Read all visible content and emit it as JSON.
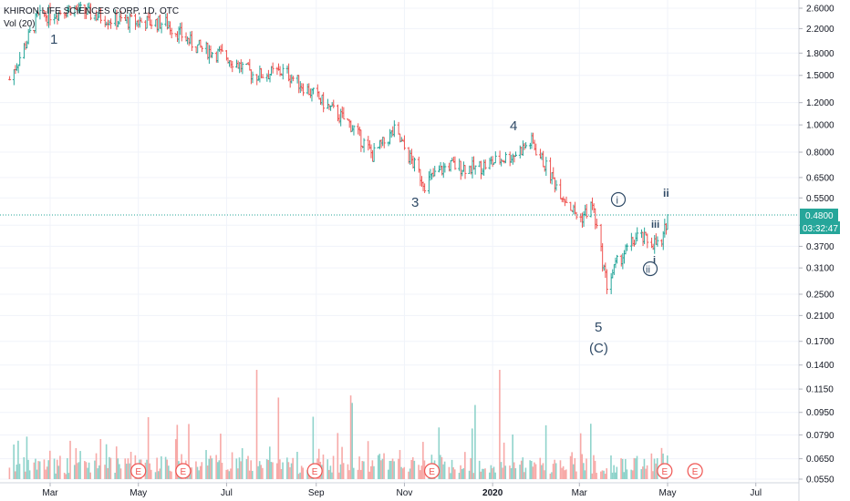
{
  "header": {
    "symbol_title": "KHIRON LIFE SCIENCES CORP, 1D, OTC",
    "vol_label": "Vol (20)"
  },
  "price_tag": {
    "last_price": "0.4800",
    "countdown": "03:32:47"
  },
  "colors": {
    "up": "#26a69a",
    "down": "#ef5350",
    "vol_up": "#8fd3cb",
    "vol_down": "#f7a9a7",
    "wave_label": "#2f4a66",
    "price_line": "#26a69a",
    "grid": "#f0f3fa"
  },
  "wave_labels": [
    "1",
    "3",
    "4",
    "5",
    "(C)",
    "i",
    "ii",
    "iii",
    "i",
    "ii"
  ],
  "earnings_marker": "E",
  "chart_data": {
    "type": "candlestick",
    "title": "KHIRON LIFE SCIENCES CORP, 1D, OTC",
    "y_scale": "log",
    "y_ticks": [
      "2.6000",
      "2.2000",
      "1.8000",
      "1.5000",
      "1.2000",
      "1.0000",
      "0.8000",
      "0.6500",
      "0.5500",
      "0.4400",
      "0.3700",
      "0.3100",
      "0.2500",
      "0.2100",
      "0.1700",
      "0.1400",
      "0.1150",
      "0.0950",
      "0.0790",
      "0.0650",
      "0.0550"
    ],
    "x_ticks": [
      "Mar",
      "May",
      "Jul",
      "Sep",
      "Nov",
      "2020",
      "Mar",
      "May",
      "Jul"
    ],
    "last_price": 0.48,
    "approx_close_path": [
      {
        "date": "2019-02-01",
        "close": 1.45
      },
      {
        "date": "2019-02-20",
        "close": 2.4
      },
      {
        "date": "2019-03-15",
        "close": 2.6
      },
      {
        "date": "2019-04-15",
        "close": 2.35
      },
      {
        "date": "2019-05-20",
        "close": 2.3
      },
      {
        "date": "2019-06-10",
        "close": 1.9
      },
      {
        "date": "2019-07-01",
        "close": 1.75
      },
      {
        "date": "2019-07-20",
        "close": 1.5
      },
      {
        "date": "2019-08-10",
        "close": 1.55
      },
      {
        "date": "2019-08-25",
        "close": 1.35
      },
      {
        "date": "2019-09-10",
        "close": 1.15
      },
      {
        "date": "2019-09-25",
        "close": 1.0
      },
      {
        "date": "2019-10-10",
        "close": 0.78
      },
      {
        "date": "2019-10-25",
        "close": 0.95
      },
      {
        "date": "2019-11-15",
        "close": 0.62
      },
      {
        "date": "2019-12-01",
        "close": 0.72
      },
      {
        "date": "2019-12-20",
        "close": 0.7
      },
      {
        "date": "2020-01-15",
        "close": 0.78
      },
      {
        "date": "2020-01-28",
        "close": 0.87
      },
      {
        "date": "2020-02-15",
        "close": 0.6
      },
      {
        "date": "2020-03-01",
        "close": 0.46
      },
      {
        "date": "2020-03-10",
        "close": 0.52
      },
      {
        "date": "2020-03-20",
        "close": 0.27
      },
      {
        "date": "2020-03-28",
        "close": 0.33
      },
      {
        "date": "2020-04-10",
        "close": 0.4
      },
      {
        "date": "2020-04-22",
        "close": 0.38
      },
      {
        "date": "2020-04-27",
        "close": 0.37
      },
      {
        "date": "2020-05-01",
        "close": 0.48
      }
    ],
    "volume_series": {
      "name": "Vol (20)",
      "approx": [
        2,
        6,
        2,
        1,
        4,
        2,
        1,
        1,
        5,
        2,
        1,
        1,
        3,
        1,
        1,
        1,
        4,
        1,
        1,
        2,
        1,
        2,
        1,
        1,
        1,
        2,
        1,
        1,
        1,
        1,
        2,
        1,
        3,
        2,
        1,
        4,
        2,
        2,
        1,
        1
      ]
    },
    "annotations": [
      {
        "label": "1",
        "date": "2019-03-01",
        "price": 2.25
      },
      {
        "label": "3",
        "date": "2019-11-12",
        "price": 0.55
      },
      {
        "label": "4",
        "date": "2020-01-25",
        "price": 0.98
      },
      {
        "label": "5",
        "date": "2020-03-22",
        "price": 0.21
      },
      {
        "label": "(C)",
        "date": "2020-03-22",
        "price": 0.17
      },
      {
        "label": "i",
        "date": "2020-04-12",
        "price": 0.53,
        "circled": true
      },
      {
        "label": "iii",
        "date": "2020-05-01",
        "price": 0.57
      },
      {
        "label": "i",
        "date": "2020-04-27",
        "price": 0.41
      },
      {
        "label": "ii",
        "date": "2020-04-28",
        "price": 0.33
      },
      {
        "label": "ii",
        "date": "2020-04-24",
        "price": 0.31,
        "circled": true
      }
    ],
    "earnings_markers": [
      "2019-05-01",
      "2019-06-01",
      "2019-08-31",
      "2019-11-20",
      "2020-04-29",
      "2020-05-20"
    ]
  }
}
